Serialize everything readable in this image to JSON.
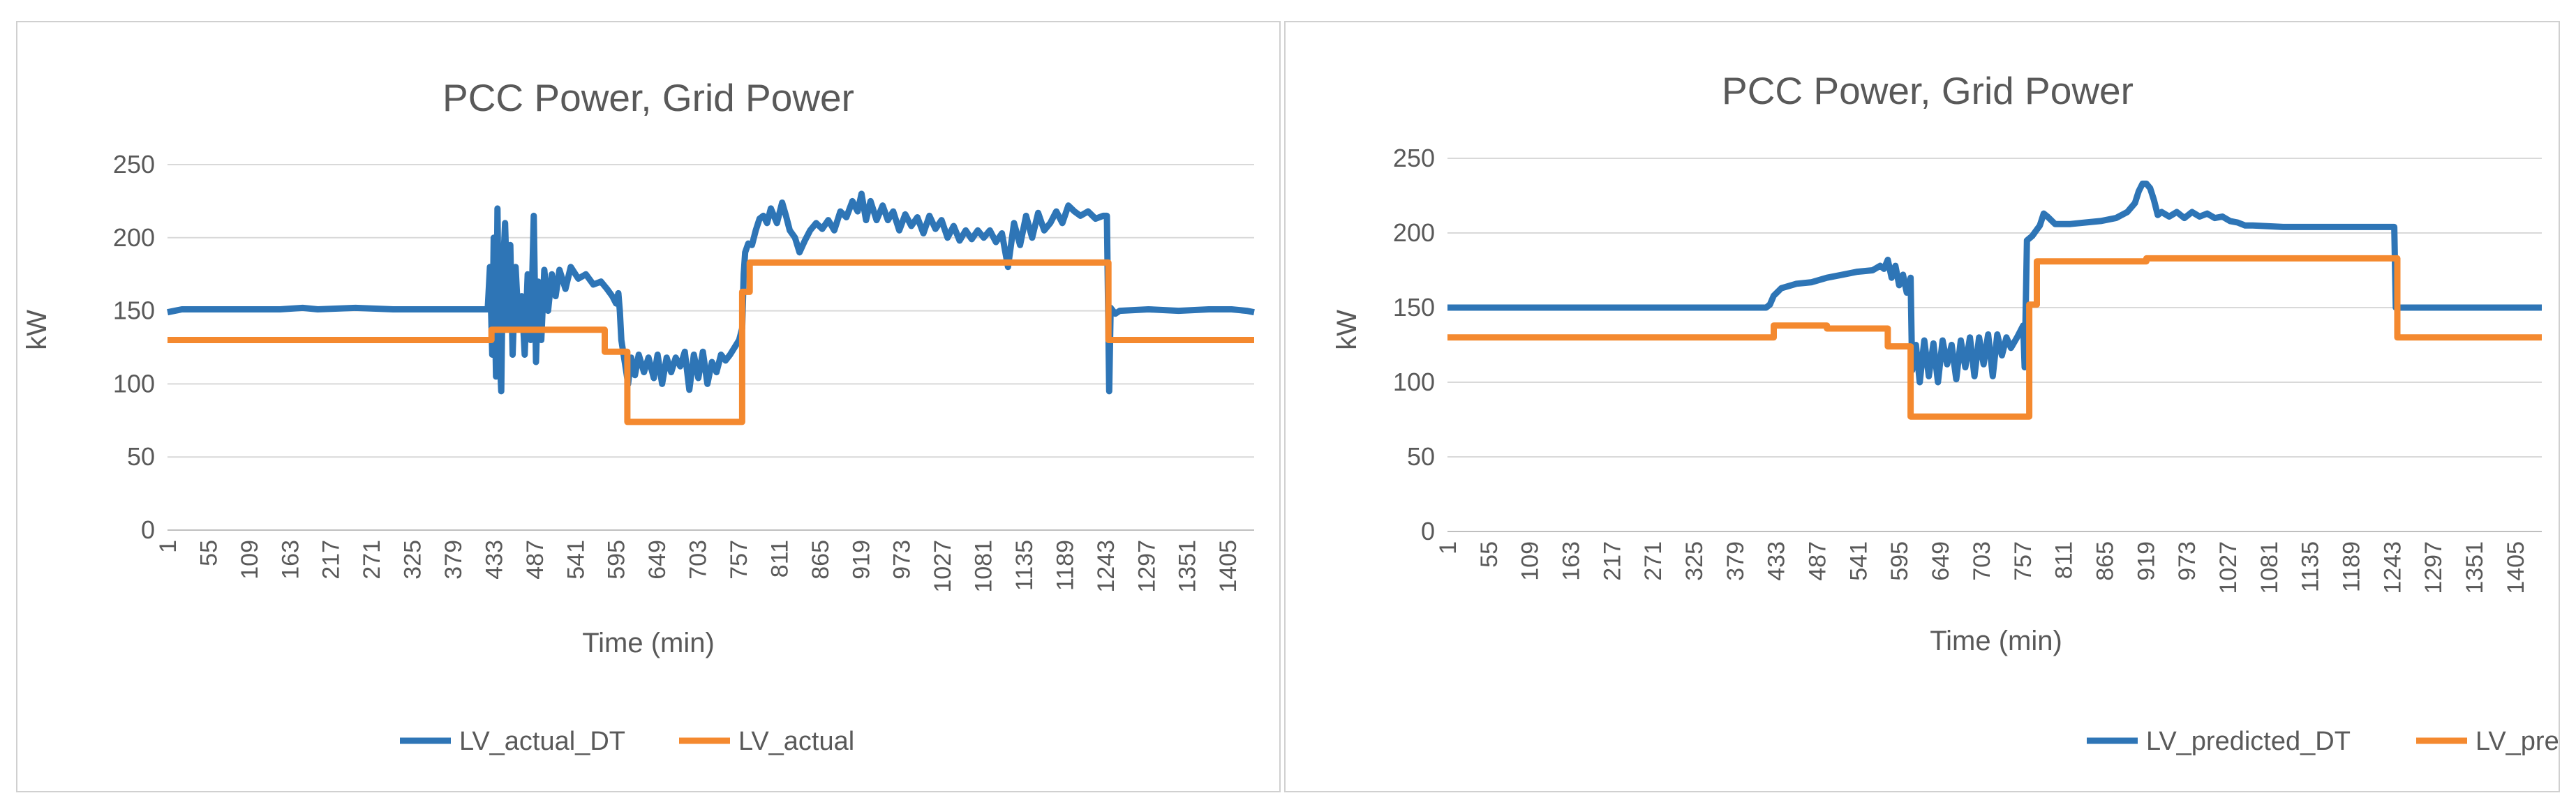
{
  "charts": [
    {
      "type": "line",
      "title": "PCC Power, Grid Power",
      "xlabel": "Time (min)",
      "ylabel": "kW",
      "ylim": [
        0,
        250
      ],
      "yticks": [
        0,
        50,
        100,
        150,
        200,
        250
      ],
      "xlim": [
        1,
        1440
      ],
      "xticks": [
        1,
        55,
        109,
        163,
        217,
        271,
        325,
        379,
        433,
        487,
        541,
        595,
        649,
        703,
        757,
        811,
        865,
        919,
        973,
        1027,
        1081,
        1135,
        1189,
        1243,
        1297,
        1351,
        1405
      ],
      "grid": true,
      "legend_position": "bottom",
      "series": [
        {
          "name": "LV_actual_DT",
          "color": "#2e75b6",
          "points": [
            [
              1,
              149
            ],
            [
              20,
              151
            ],
            [
              150,
              151
            ],
            [
              180,
              152
            ],
            [
              200,
              151
            ],
            [
              250,
              152
            ],
            [
              300,
              151
            ],
            [
              420,
              151
            ],
            [
              425,
              151
            ],
            [
              428,
              180
            ],
            [
              431,
              120
            ],
            [
              433,
              200
            ],
            [
              436,
              105
            ],
            [
              438,
              220
            ],
            [
              440,
              130
            ],
            [
              443,
              95
            ],
            [
              445,
              175
            ],
            [
              448,
              210
            ],
            [
              452,
              140
            ],
            [
              455,
              195
            ],
            [
              458,
              120
            ],
            [
              462,
              180
            ],
            [
              466,
              140
            ],
            [
              470,
              160
            ],
            [
              474,
              120
            ],
            [
              478,
              175
            ],
            [
              482,
              130
            ],
            [
              486,
              215
            ],
            [
              489,
              115
            ],
            [
              492,
              170
            ],
            [
              496,
              130
            ],
            [
              500,
              178
            ],
            [
              505,
              150
            ],
            [
              510,
              175
            ],
            [
              515,
              160
            ],
            [
              520,
              178
            ],
            [
              528,
              165
            ],
            [
              535,
              180
            ],
            [
              545,
              172
            ],
            [
              555,
              175
            ],
            [
              565,
              168
            ],
            [
              575,
              170
            ],
            [
              583,
              165
            ],
            [
              590,
              160
            ],
            [
              595,
              155
            ],
            [
              598,
              162
            ],
            [
              600,
              150
            ],
            [
              602,
              130
            ],
            [
              605,
              120
            ],
            [
              608,
              110
            ],
            [
              611,
              100
            ],
            [
              615,
              118
            ],
            [
              620,
              106
            ],
            [
              625,
              120
            ],
            [
              632,
              108
            ],
            [
              638,
              118
            ],
            [
              645,
              104
            ],
            [
              650,
              120
            ],
            [
              656,
              100
            ],
            [
              662,
              118
            ],
            [
              668,
              108
            ],
            [
              674,
              118
            ],
            [
              680,
              112
            ],
            [
              686,
              122
            ],
            [
              692,
              96
            ],
            [
              698,
              120
            ],
            [
              704,
              104
            ],
            [
              710,
              122
            ],
            [
              716,
              100
            ],
            [
              722,
              115
            ],
            [
              728,
              108
            ],
            [
              734,
              120
            ],
            [
              740,
              116
            ],
            [
              746,
              120
            ],
            [
              752,
              125
            ],
            [
              758,
              130
            ],
            [
              762,
              138
            ],
            [
              764,
              175
            ],
            [
              766,
              190
            ],
            [
              770,
              196
            ],
            [
              775,
              195
            ],
            [
              780,
              205
            ],
            [
              785,
              213
            ],
            [
              790,
              215
            ],
            [
              795,
              210
            ],
            [
              800,
              220
            ],
            [
              808,
              210
            ],
            [
              815,
              224
            ],
            [
              820,
              215
            ],
            [
              825,
              205
            ],
            [
              832,
              200
            ],
            [
              838,
              190
            ],
            [
              845,
              198
            ],
            [
              852,
              205
            ],
            [
              860,
              210
            ],
            [
              868,
              206
            ],
            [
              876,
              212
            ],
            [
              884,
              205
            ],
            [
              892,
              218
            ],
            [
              900,
              214
            ],
            [
              908,
              225
            ],
            [
              915,
              218
            ],
            [
              920,
              230
            ],
            [
              926,
              212
            ],
            [
              932,
              225
            ],
            [
              940,
              212
            ],
            [
              948,
              222
            ],
            [
              955,
              212
            ],
            [
              962,
              218
            ],
            [
              970,
              205
            ],
            [
              978,
              216
            ],
            [
              986,
              208
            ],
            [
              994,
              214
            ],
            [
              1002,
              203
            ],
            [
              1010,
              215
            ],
            [
              1018,
              206
            ],
            [
              1026,
              212
            ],
            [
              1034,
              200
            ],
            [
              1042,
              208
            ],
            [
              1050,
              198
            ],
            [
              1058,
              205
            ],
            [
              1066,
              199
            ],
            [
              1074,
              205
            ],
            [
              1082,
              200
            ],
            [
              1090,
              205
            ],
            [
              1098,
              197
            ],
            [
              1106,
              203
            ],
            [
              1114,
              180
            ],
            [
              1122,
              210
            ],
            [
              1130,
              195
            ],
            [
              1138,
              215
            ],
            [
              1146,
              200
            ],
            [
              1154,
              217
            ],
            [
              1162,
              205
            ],
            [
              1170,
              210
            ],
            [
              1178,
              218
            ],
            [
              1186,
              210
            ],
            [
              1194,
              222
            ],
            [
              1202,
              218
            ],
            [
              1210,
              215
            ],
            [
              1220,
              218
            ],
            [
              1230,
              213
            ],
            [
              1240,
              215
            ],
            [
              1245,
              215
            ],
            [
              1248,
              95
            ],
            [
              1250,
              152
            ],
            [
              1256,
              148
            ],
            [
              1262,
              150
            ],
            [
              1300,
              151
            ],
            [
              1340,
              150
            ],
            [
              1380,
              151
            ],
            [
              1410,
              151
            ],
            [
              1430,
              150
            ],
            [
              1440,
              149
            ]
          ]
        },
        {
          "name": "LV_actual",
          "color": "#f4892f",
          "points": [
            [
              1,
              130
            ],
            [
              430,
              130
            ],
            [
              430,
              137
            ],
            [
              580,
              137
            ],
            [
              580,
              122
            ],
            [
              610,
              122
            ],
            [
              610,
              74
            ],
            [
              762,
              74
            ],
            [
              762,
              163
            ],
            [
              772,
              163
            ],
            [
              772,
              183
            ],
            [
              1247,
              183
            ],
            [
              1247,
              130
            ],
            [
              1440,
              130
            ]
          ]
        }
      ]
    },
    {
      "type": "line",
      "title": "PCC Power, Grid Power",
      "xlabel": "Time (min)",
      "ylabel": "kW",
      "ylim": [
        0,
        250
      ],
      "yticks": [
        0,
        50,
        100,
        150,
        200,
        250
      ],
      "xlim": [
        1,
        1440
      ],
      "xticks": [
        1,
        55,
        109,
        163,
        217,
        271,
        325,
        379,
        433,
        487,
        541,
        595,
        649,
        703,
        757,
        811,
        865,
        919,
        973,
        1027,
        1081,
        1135,
        1189,
        1243,
        1297,
        1351,
        1405
      ],
      "grid": true,
      "legend_position": "bottom",
      "series": [
        {
          "name": "LV_predicted_DT",
          "color": "#2e75b6",
          "points": [
            [
              1,
              150
            ],
            [
              420,
              150
            ],
            [
              425,
              152
            ],
            [
              430,
              158
            ],
            [
              440,
              163
            ],
            [
              460,
              166
            ],
            [
              480,
              167
            ],
            [
              500,
              170
            ],
            [
              520,
              172
            ],
            [
              540,
              174
            ],
            [
              560,
              175
            ],
            [
              570,
              178
            ],
            [
              575,
              176
            ],
            [
              580,
              182
            ],
            [
              585,
              170
            ],
            [
              590,
              178
            ],
            [
              595,
              165
            ],
            [
              600,
              172
            ],
            [
              605,
              160
            ],
            [
              610,
              170
            ],
            [
              612,
              108
            ],
            [
              617,
              125
            ],
            [
              622,
              100
            ],
            [
              628,
              128
            ],
            [
              634,
              104
            ],
            [
              640,
              126
            ],
            [
              646,
              100
            ],
            [
              652,
              128
            ],
            [
              658,
              112
            ],
            [
              664,
              125
            ],
            [
              670,
              102
            ],
            [
              676,
              128
            ],
            [
              682,
              110
            ],
            [
              688,
              130
            ],
            [
              694,
              104
            ],
            [
              700,
              130
            ],
            [
              706,
              112
            ],
            [
              712,
              132
            ],
            [
              718,
              104
            ],
            [
              724,
              132
            ],
            [
              730,
              118
            ],
            [
              736,
              130
            ],
            [
              742,
              123
            ],
            [
              750,
              130
            ],
            [
              758,
              138
            ],
            [
              760,
              110
            ],
            [
              763,
              195
            ],
            [
              770,
              198
            ],
            [
              780,
              205
            ],
            [
              785,
              213
            ],
            [
              790,
              211
            ],
            [
              800,
              206
            ],
            [
              820,
              206
            ],
            [
              840,
              207
            ],
            [
              860,
              208
            ],
            [
              880,
              210
            ],
            [
              895,
              214
            ],
            [
              905,
              220
            ],
            [
              910,
              228
            ],
            [
              915,
              233
            ],
            [
              920,
              233
            ],
            [
              925,
              230
            ],
            [
              930,
              222
            ],
            [
              935,
              212
            ],
            [
              940,
              214
            ],
            [
              950,
              211
            ],
            [
              960,
              214
            ],
            [
              970,
              210
            ],
            [
              980,
              214
            ],
            [
              990,
              211
            ],
            [
              1000,
              213
            ],
            [
              1010,
              210
            ],
            [
              1020,
              211
            ],
            [
              1030,
              208
            ],
            [
              1040,
              207
            ],
            [
              1050,
              205
            ],
            [
              1060,
              205
            ],
            [
              1100,
              204
            ],
            [
              1150,
              204
            ],
            [
              1200,
              204
            ],
            [
              1245,
              204
            ],
            [
              1246,
              204
            ],
            [
              1248,
              150
            ],
            [
              1300,
              150
            ],
            [
              1440,
              150
            ]
          ]
        },
        {
          "name": "LV_predicted",
          "color": "#f4892f",
          "points": [
            [
              1,
              130
            ],
            [
              430,
              130
            ],
            [
              430,
              138
            ],
            [
              500,
              138
            ],
            [
              500,
              136
            ],
            [
              580,
              136
            ],
            [
              580,
              124
            ],
            [
              610,
              124
            ],
            [
              610,
              77
            ],
            [
              766,
              77
            ],
            [
              766,
              152
            ],
            [
              776,
              152
            ],
            [
              776,
              181
            ],
            [
              920,
              181
            ],
            [
              920,
              183
            ],
            [
              1250,
              183
            ],
            [
              1250,
              130
            ],
            [
              1440,
              130
            ]
          ]
        }
      ]
    }
  ]
}
